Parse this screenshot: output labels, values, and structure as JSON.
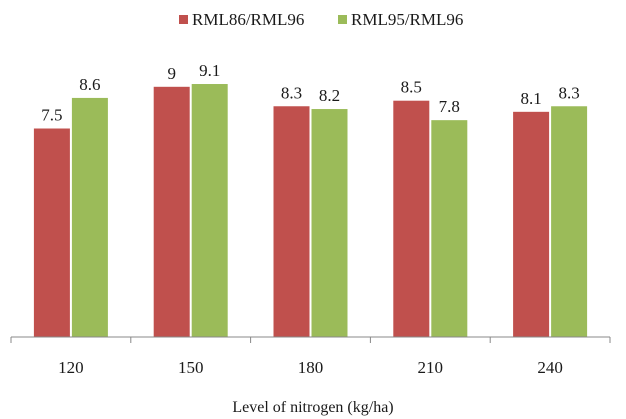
{
  "chart_data": {
    "type": "bar",
    "title": "",
    "xlabel": "Level of nitrogen (kg/ha)",
    "ylabel": "",
    "categories": [
      "120",
      "150",
      "180",
      "210",
      "240"
    ],
    "series": [
      {
        "name": "RML86/RML96",
        "values": [
          7.5,
          9,
          8.3,
          8.5,
          8.1
        ],
        "color": "#c0504d"
      },
      {
        "name": "RML95/RML96",
        "values": [
          8.6,
          9.1,
          8.2,
          7.8,
          8.3
        ],
        "color": "#9bbb59"
      }
    ],
    "ylim": [
      0,
      10
    ],
    "grid": false,
    "legend": "top-center"
  }
}
